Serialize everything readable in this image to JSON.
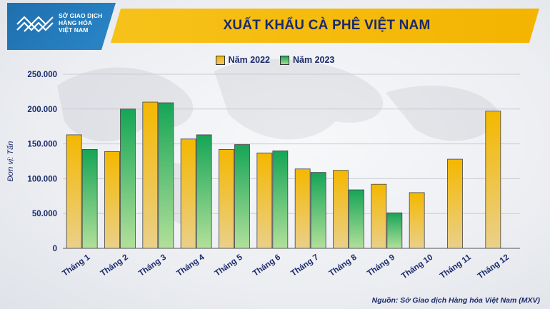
{
  "logo": {
    "line1": "SỞ GIAO DỊCH",
    "line2": "HÀNG HÓA",
    "line3": "VIỆT NAM"
  },
  "source": "Nguồn: Sở Giao dịch Hàng hóa Việt Nam (MXV)",
  "colors": {
    "y2022": "#f4b800",
    "y2023": "#1aa85a",
    "title": "#1b2a6b",
    "band": "#f6c21a",
    "logo_bg": "#1f6fae"
  },
  "chart_data": {
    "type": "bar",
    "title": "XUẤT KHẨU CÀ PHÊ VIỆT NAM",
    "ylabel": "Đơn vị: Tấn",
    "xlabel": "",
    "categories": [
      "Tháng 1",
      "Tháng 2",
      "Tháng 3",
      "Tháng 4",
      "Tháng 5",
      "Tháng 6",
      "Tháng 7",
      "Tháng 8",
      "Tháng 9",
      "Tháng 10",
      "Tháng 11",
      "Tháng 12"
    ],
    "series": [
      {
        "name": "Năm 2022",
        "values": [
          163000,
          139000,
          210000,
          157000,
          142000,
          137000,
          114000,
          112000,
          92000,
          80000,
          128000,
          197000
        ]
      },
      {
        "name": "Năm 2023",
        "values": [
          142000,
          200000,
          209000,
          163000,
          149000,
          140000,
          109000,
          84000,
          51000,
          null,
          null,
          null
        ]
      }
    ],
    "ylim": [
      0,
      250000
    ],
    "yticks": [
      0,
      50000,
      100000,
      150000,
      200000,
      250000
    ],
    "ytick_labels": [
      "0",
      "50.000",
      "100.000",
      "150.000",
      "200.000",
      "250.000"
    ],
    "grid": true,
    "legend": "top-center"
  }
}
